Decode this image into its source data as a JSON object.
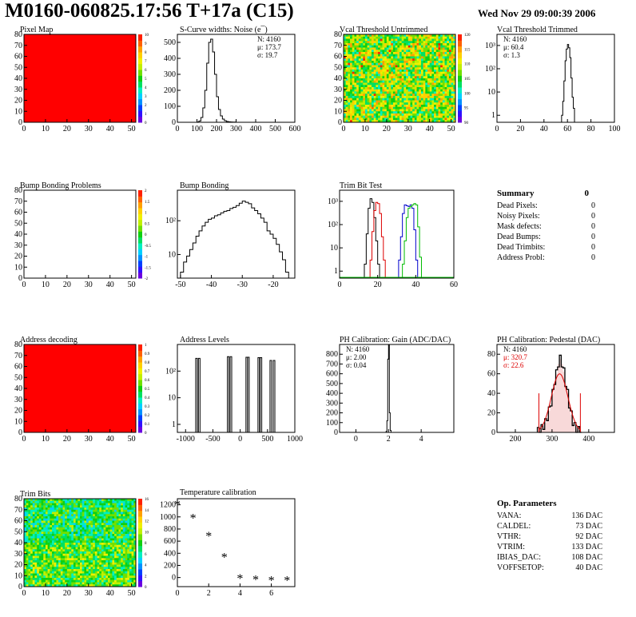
{
  "header": {
    "title": "M0160-060825.17:56 T+17a (C15)",
    "date": "Wed Nov 29 09:00:39 2006"
  },
  "colors": {
    "histogram_line": "#000000",
    "trimbit_red": "#dd0000",
    "trimbit_blue": "#0000cc",
    "trimbit_green": "#00bb00",
    "stats_red": "#dd0000",
    "map_red": "#ff0000"
  },
  "palette": [
    "#6a00e0",
    "#3010ff",
    "#0040ff",
    "#0090ff",
    "#00d0ff",
    "#00f0c0",
    "#00e060",
    "#10d010",
    "#70e000",
    "#c0f000",
    "#f0f000",
    "#ffd000",
    "#ffa000",
    "#ff6000",
    "#ff2000"
  ],
  "panels": {
    "pixel_map": {
      "title": "Pixel Map",
      "x_ticks": [
        "0",
        "10",
        "20",
        "30",
        "40",
        "50"
      ],
      "y_ticks": [
        "0",
        "10",
        "20",
        "30",
        "40",
        "50",
        "60",
        "70",
        "80"
      ],
      "palette_ticks": [
        "10",
        "9",
        "8",
        "7",
        "6",
        "5",
        "4",
        "3",
        "2",
        "1",
        "0"
      ]
    },
    "scurve": {
      "title": "S-Curve widths: Noise (e¯)",
      "x_ticks": [
        "0",
        "100",
        "200",
        "300",
        "400",
        "500",
        "600"
      ],
      "y_ticks": [
        "0",
        "100",
        "200",
        "300",
        "400",
        "500"
      ],
      "stats": [
        "N: 4160",
        "μ: 173.7",
        "σ: 19.7"
      ]
    },
    "vcal_untrimmed": {
      "title": "Vcal Threshold Untrimmed",
      "x_ticks": [
        "0",
        "10",
        "20",
        "30",
        "40",
        "50"
      ],
      "y_ticks": [
        "0",
        "10",
        "20",
        "30",
        "40",
        "50",
        "60",
        "70",
        "80"
      ],
      "palette_ticks": [
        "120",
        "115",
        "110",
        "105",
        "100",
        "95",
        "90"
      ]
    },
    "vcal_trimmed": {
      "title": "Vcal Threshold Trimmed",
      "x_ticks": [
        "0",
        "20",
        "40",
        "60",
        "80",
        "100"
      ],
      "y_ticks": [
        "1",
        "10",
        "10²",
        "10³"
      ],
      "stats": [
        "N: 4160",
        "μ: 60.4",
        "σ: 1.3"
      ]
    },
    "bump_problems": {
      "title": "Bump Bonding Problems",
      "x_ticks": [
        "0",
        "10",
        "20",
        "30",
        "40",
        "50"
      ],
      "y_ticks": [
        "0",
        "10",
        "20",
        "30",
        "40",
        "50",
        "60",
        "70",
        "80"
      ],
      "palette_ticks": [
        "2",
        "1.5",
        "1",
        "0.5",
        "0",
        "-0.5",
        "-1",
        "-1.5",
        "-2"
      ]
    },
    "bump_bonding": {
      "title": "Bump Bonding",
      "x_ticks": [
        "-50",
        "-40",
        "-30",
        "-20"
      ],
      "y_ticks": [
        "10",
        "10²"
      ]
    },
    "trim_bit_test": {
      "title": "Trim Bit Test",
      "x_ticks": [
        "0",
        "20",
        "40",
        "60"
      ],
      "y_ticks": [
        "1",
        "10",
        "10²",
        "10³"
      ]
    },
    "summary": {
      "title": "Summary",
      "total": "0",
      "rows": [
        {
          "label": "Dead Pixels:",
          "value": "0"
        },
        {
          "label": "Noisy Pixels:",
          "value": "0"
        },
        {
          "label": "Mask defects:",
          "value": "0"
        },
        {
          "label": "Dead Bumps:",
          "value": "0"
        },
        {
          "label": "Dead Trimbits:",
          "value": "0"
        },
        {
          "label": "Address Probl:",
          "value": "0"
        }
      ]
    },
    "address_decoding": {
      "title": "Address decoding",
      "x_ticks": [
        "0",
        "10",
        "20",
        "30",
        "40",
        "50"
      ],
      "y_ticks": [
        "0",
        "10",
        "20",
        "30",
        "40",
        "50",
        "60",
        "70",
        "80"
      ],
      "palette_ticks": [
        "1",
        "0.9",
        "0.8",
        "0.7",
        "0.6",
        "0.5",
        "0.4",
        "0.3",
        "0.2",
        "0.1",
        "0"
      ]
    },
    "address_levels": {
      "title": "Address Levels",
      "x_ticks": [
        "-1000",
        "-500",
        "0",
        "500",
        "1000"
      ],
      "y_ticks": [
        "1",
        "10",
        "10²"
      ]
    },
    "ph_gain": {
      "title": "PH Calibration: Gain (ADC/DAC)",
      "x_ticks": [
        "0",
        "2",
        "4"
      ],
      "y_ticks": [
        "0",
        "100",
        "200",
        "300",
        "400",
        "500",
        "600",
        "700",
        "800"
      ],
      "stats": [
        "N: 4160",
        "μ: 2.00",
        "σ: 0.04"
      ]
    },
    "ph_pedestal": {
      "title": "PH Calibration: Pedestal (DAC)",
      "x_ticks": [
        "200",
        "300",
        "400"
      ],
      "y_ticks": [
        "0",
        "20",
        "40",
        "60",
        "80"
      ],
      "stats": [
        "N: 4160",
        "μ: 320.7",
        "σ: 22.6"
      ]
    },
    "trim_bits": {
      "title": "Trim Bits",
      "x_ticks": [
        "0",
        "10",
        "20",
        "30",
        "40",
        "50"
      ],
      "y_ticks": [
        "0",
        "10",
        "20",
        "30",
        "40",
        "50",
        "60",
        "70",
        "80"
      ],
      "palette_ticks": [
        "16",
        "14",
        "12",
        "10",
        "8",
        "6",
        "4",
        "2",
        "0"
      ]
    },
    "temperature": {
      "title": "Temperature calibration",
      "x_ticks": [
        "0",
        "2",
        "4",
        "6"
      ],
      "y_ticks": [
        "0",
        "200",
        "400",
        "600",
        "800",
        "1000",
        "1200"
      ]
    },
    "op_params": {
      "title": "Op. Parameters",
      "rows": [
        {
          "label": "VANA:",
          "value": "136 DAC"
        },
        {
          "label": "CALDEL:",
          "value": "73 DAC"
        },
        {
          "label": "VTHR:",
          "value": "92 DAC"
        },
        {
          "label": "VTRIM:",
          "value": "133 DAC"
        },
        {
          "label": "IBIAS_DAC:",
          "value": "108 DAC"
        },
        {
          "label": "VOFFSETOP:",
          "value": "40 DAC"
        }
      ]
    }
  },
  "chart_data": [
    {
      "type": "heatmap",
      "title": "Pixel Map",
      "x_range": [
        0,
        52
      ],
      "y_range": [
        0,
        80
      ],
      "z_range": [
        0,
        10
      ],
      "z_uniform": 10
    },
    {
      "type": "bar",
      "title": "S-Curve widths: Noise (e¯)",
      "x_range": [
        0,
        600
      ],
      "y_range": [
        0,
        550
      ],
      "bin_edges": [
        100,
        110,
        120,
        130,
        140,
        150,
        160,
        170,
        180,
        190,
        200,
        210,
        220,
        230,
        240,
        250,
        260,
        270,
        280,
        290,
        300
      ],
      "values": [
        2,
        8,
        30,
        90,
        200,
        370,
        500,
        520,
        440,
        300,
        160,
        80,
        40,
        20,
        10,
        5,
        3,
        2,
        1,
        1
      ]
    },
    {
      "type": "heatmap",
      "title": "Vcal Threshold Untrimmed",
      "x_range": [
        0,
        52
      ],
      "y_range": [
        0,
        80
      ],
      "z_range": [
        88,
        122
      ]
    },
    {
      "type": "bar",
      "title": "Vcal Threshold Trimmed",
      "log_y": true,
      "x_range": [
        0,
        100
      ],
      "y_range": [
        0.5,
        3000
      ],
      "bin_edges": [
        55,
        56,
        57,
        58,
        59,
        60,
        61,
        62,
        63,
        64,
        65,
        66
      ],
      "values": [
        1,
        4,
        30,
        220,
        700,
        1100,
        800,
        300,
        40,
        6,
        2
      ]
    },
    {
      "type": "heatmap",
      "title": "Bump Bonding Problems",
      "x_range": [
        0,
        52
      ],
      "y_range": [
        0,
        80
      ],
      "z_range": [
        -2,
        2
      ],
      "z_uniform": 0
    },
    {
      "type": "bar",
      "title": "Bump Bonding",
      "log_y": true,
      "x_range": [
        -51,
        -13
      ],
      "y_range": [
        2,
        800
      ],
      "bin_edges": [
        -50,
        -49,
        -48,
        -47,
        -46,
        -45,
        -44,
        -43,
        -42,
        -41,
        -40,
        -39,
        -38,
        -37,
        -36,
        -35,
        -34,
        -33,
        -32,
        -31,
        -30,
        -29,
        -28,
        -27,
        -26,
        -25,
        -24,
        -23,
        -22,
        -21,
        -20,
        -19,
        -18,
        -17,
        -16,
        -15
      ],
      "values": [
        3,
        6,
        9,
        14,
        22,
        35,
        50,
        70,
        90,
        110,
        120,
        140,
        150,
        170,
        190,
        200,
        230,
        250,
        280,
        330,
        380,
        350,
        320,
        240,
        200,
        160,
        120,
        90,
        50,
        40,
        30,
        20,
        12,
        7,
        3
      ]
    },
    {
      "type": "bar",
      "title": "Trim Bit Test",
      "log_y": true,
      "x_range": [
        0,
        60
      ],
      "y_range": [
        0.5,
        3000
      ],
      "series": [
        {
          "bin_edges": [
            13,
            14,
            15,
            16,
            17,
            18,
            19,
            20,
            21
          ],
          "values": [
            2,
            40,
            500,
            1300,
            900,
            200,
            20,
            2
          ]
        },
        {
          "bin_edges": [
            16,
            17,
            18,
            19,
            20,
            21,
            22,
            23,
            24
          ],
          "values": [
            3,
            50,
            400,
            900,
            800,
            300,
            30,
            3
          ]
        },
        {
          "bin_edges": [
            31,
            32,
            33,
            34,
            35,
            36,
            37,
            38,
            39,
            40,
            41
          ],
          "values": [
            3,
            30,
            300,
            700,
            650,
            600,
            700,
            500,
            60,
            3
          ]
        },
        {
          "bin_edges": [
            33,
            34,
            35,
            36,
            37,
            38,
            39,
            40,
            41,
            42,
            43
          ],
          "values": [
            2,
            20,
            200,
            500,
            600,
            700,
            800,
            700,
            80,
            4
          ]
        }
      ]
    },
    {
      "type": "heatmap",
      "title": "Address decoding",
      "x_range": [
        0,
        52
      ],
      "y_range": [
        0,
        80
      ],
      "z_range": [
        0,
        1
      ],
      "z_uniform": 1
    },
    {
      "type": "bar",
      "title": "Address Levels",
      "log_y": true,
      "x_range": [
        -1150,
        1000
      ],
      "y_range": [
        0.5,
        1000
      ],
      "peaks_x": [
        -800,
        -750,
        -220,
        -170,
        120,
        150,
        340,
        380,
        560,
        620
      ],
      "peak_heights": [
        300,
        300,
        350,
        350,
        330,
        330,
        320,
        320,
        250,
        250
      ]
    },
    {
      "type": "bar",
      "title": "PH Calibration: Gain (ADC/DAC)",
      "x_range": [
        -1,
        6
      ],
      "y_range": [
        0,
        900
      ],
      "bin_edges": [
        1.85,
        1.9,
        1.95,
        2.0,
        2.05,
        2.1,
        2.15
      ],
      "values": [
        10,
        120,
        750,
        900,
        200,
        20
      ]
    },
    {
      "type": "bar",
      "title": "PH Calibration: Pedestal (DAC)",
      "x_range": [
        150,
        470
      ],
      "y_range": [
        0,
        90
      ],
      "fit": "gaussian",
      "fit_mean": 320.7,
      "fit_sigma": 22.6,
      "fit_peak": 60,
      "bin_edges_start": 260,
      "bin_width": 5,
      "values": [
        1,
        2,
        4,
        6,
        10,
        15,
        22,
        30,
        40,
        52,
        60,
        70,
        75,
        70,
        62,
        50,
        40,
        28,
        18,
        10,
        6,
        3,
        2,
        1
      ]
    },
    {
      "type": "heatmap",
      "title": "Trim Bits",
      "x_range": [
        0,
        52
      ],
      "y_range": [
        0,
        80
      ],
      "z_range": [
        0,
        16
      ]
    },
    {
      "type": "scatter",
      "title": "Temperature calibration",
      "x_range": [
        0,
        7.5
      ],
      "y_range": [
        -150,
        1300
      ],
      "x": [
        0,
        1,
        2,
        3,
        4,
        5,
        6,
        7
      ],
      "y": [
        1200,
        980,
        680,
        330,
        -20,
        -40,
        -50,
        -50
      ]
    }
  ]
}
